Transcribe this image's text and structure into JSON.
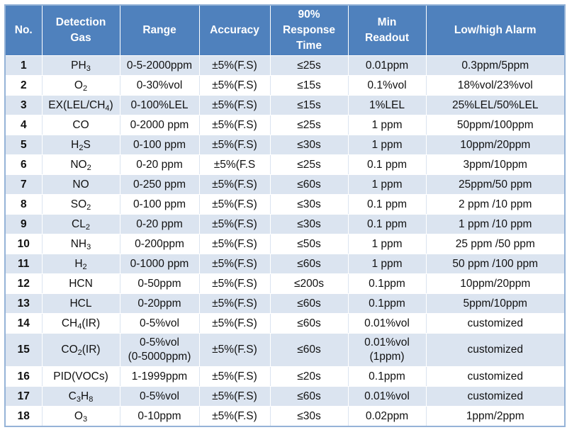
{
  "header": {
    "no": "No.",
    "gas_line1": "Detection",
    "gas_line2": "Gas",
    "range": "Range",
    "accuracy": "Accuracy",
    "response_line1": "90%",
    "response_line2": "Response",
    "response_line3": "Time",
    "min_line1": "Min",
    "min_line2": "Readout",
    "alarm": "Low/high Alarm"
  },
  "rows": [
    {
      "no": "1",
      "gas": "PH",
      "sub": "3",
      "gas_after": "",
      "range": "0-5-2000ppm",
      "range2": "",
      "accuracy": "±5%(F.S)",
      "response": "≤25s",
      "min": "0.01ppm",
      "min2": "",
      "alarm": "0.3ppm/5ppm"
    },
    {
      "no": "2",
      "gas": "O",
      "sub": "2",
      "gas_after": "",
      "range": "0-30%vol",
      "range2": "",
      "accuracy": "±5%(F.S)",
      "response": "≤15s",
      "min": "0.1%vol",
      "min2": "",
      "alarm": "18%vol/23%vol"
    },
    {
      "no": "3",
      "gas": "EX(LEL/CH",
      "sub": "4",
      "gas_after": ")",
      "range": "0-100%LEL",
      "range2": "",
      "accuracy": "±5%(F.S)",
      "response": "≤15s",
      "min": "1%LEL",
      "min2": "",
      "alarm": "25%LEL/50%LEL"
    },
    {
      "no": "4",
      "gas": "CO",
      "sub": "",
      "gas_after": "",
      "range": "0-2000 ppm",
      "range2": "",
      "accuracy": "±5%(F.S)",
      "response": "≤25s",
      "min": "1 ppm",
      "min2": "",
      "alarm": "50ppm/100ppm"
    },
    {
      "no": "5",
      "gas": "H",
      "sub": "2",
      "gas_after": "S",
      "range": "0-100 ppm",
      "range2": "",
      "accuracy": "±5%(F.S)",
      "response": "≤30s",
      "min": "1 ppm",
      "min2": "",
      "alarm": "10ppm/20ppm"
    },
    {
      "no": "6",
      "gas": "NO",
      "sub": "2",
      "gas_after": "",
      "range": "0-20 ppm",
      "range2": "",
      "accuracy": "±5%(F.S",
      "response": "≤25s",
      "min": "0.1 ppm",
      "min2": "",
      "alarm": "3ppm/10ppm"
    },
    {
      "no": "7",
      "gas": "NO",
      "sub": "",
      "gas_after": "",
      "range": "0-250 ppm",
      "range2": "",
      "accuracy": "±5%(F.S)",
      "response": "≤60s",
      "min": "1 ppm",
      "min2": "",
      "alarm": "25ppm/50 ppm"
    },
    {
      "no": "8",
      "gas": "SO",
      "sub": "2",
      "gas_after": "",
      "range": "0-100 ppm",
      "range2": "",
      "accuracy": "±5%(F.S)",
      "response": "≤30s",
      "min": "0.1 ppm",
      "min2": "",
      "alarm": "2 ppm /10 ppm"
    },
    {
      "no": "9",
      "gas": "CL",
      "sub": "2",
      "gas_after": "",
      "range": "0-20 ppm",
      "range2": "",
      "accuracy": "±5%(F.S)",
      "response": "≤30s",
      "min": "0.1 ppm",
      "min2": "",
      "alarm": "1 ppm /10 ppm"
    },
    {
      "no": "10",
      "gas": "NH",
      "sub": "3",
      "gas_after": "",
      "range": "0-200ppm",
      "range2": "",
      "accuracy": "±5%(F.S)",
      "response": "≤50s",
      "min": "1 ppm",
      "min2": "",
      "alarm": "25 ppm /50 ppm"
    },
    {
      "no": "11",
      "gas": "H",
      "sub": "2",
      "gas_after": "",
      "range": "0-1000 ppm",
      "range2": "",
      "accuracy": "±5%(F.S)",
      "response": "≤60s",
      "min": "1 ppm",
      "min2": "",
      "alarm": "50 ppm /100 ppm"
    },
    {
      "no": "12",
      "gas": "HCN",
      "sub": "",
      "gas_after": "",
      "range": "0-50ppm",
      "range2": "",
      "accuracy": "±5%(F.S)",
      "response": "≤200s",
      "min": "0.1ppm",
      "min2": "",
      "alarm": "10ppm/20ppm"
    },
    {
      "no": "13",
      "gas": "HCL",
      "sub": "",
      "gas_after": "",
      "range": "0-20ppm",
      "range2": "",
      "accuracy": "±5%(F.S)",
      "response": "≤60s",
      "min": "0.1ppm",
      "min2": "",
      "alarm": "5ppm/10ppm"
    },
    {
      "no": "14",
      "gas": "CH",
      "sub": "4",
      "gas_after": "(IR)",
      "range": "0-5%vol",
      "range2": "",
      "accuracy": "±5%(F.S)",
      "response": "≤60s",
      "min": "0.01%vol",
      "min2": "",
      "alarm": "customized"
    },
    {
      "no": "15",
      "gas": "CO",
      "sub": "2",
      "gas_after": "(IR)",
      "range": "0-5%vol",
      "range2": "(0-5000ppm)",
      "accuracy": "±5%(F.S)",
      "response": "≤60s",
      "min": "0.01%vol",
      "min2": "(1ppm)",
      "alarm": "customized"
    },
    {
      "no": "16",
      "gas": "PID(VOCs)",
      "sub": "",
      "gas_after": "",
      "range": "1-1999ppm",
      "range2": "",
      "accuracy": "±5%(F.S)",
      "response": "≤20s",
      "min": "0.1ppm",
      "min2": "",
      "alarm": "customized"
    },
    {
      "no": "17",
      "gas": "C",
      "sub": "3",
      "gas_after": "H",
      "sub2": "8",
      "range": "0-5%vol",
      "range2": "",
      "accuracy": "±5%(F.S)",
      "response": "≤60s",
      "min": "0.01%vol",
      "min2": "",
      "alarm": "customized"
    },
    {
      "no": "18",
      "gas": "O",
      "sub": "3",
      "gas_after": "",
      "range": "0-10ppm",
      "range2": "",
      "accuracy": "±5%(F.S)",
      "response": "≤30s",
      "min": "0.02ppm",
      "min2": "",
      "alarm": "1ppm/2ppm"
    }
  ]
}
